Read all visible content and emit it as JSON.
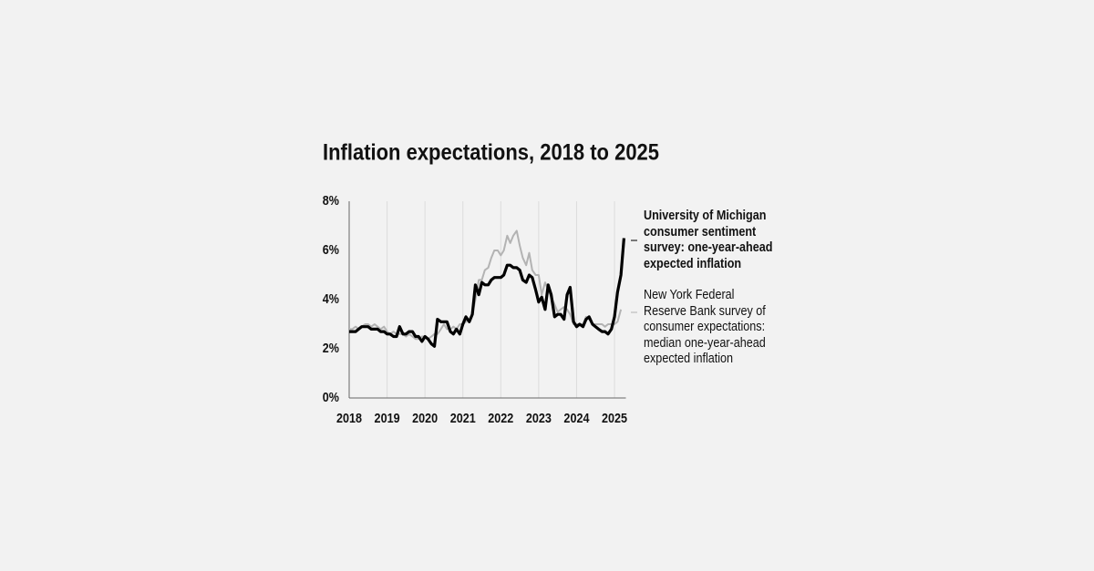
{
  "chart_data": {
    "type": "line",
    "title": "Inflation expectations, 2018 to 2025",
    "x": [
      2018,
      2018.08,
      2018.17,
      2018.25,
      2018.33,
      2018.42,
      2018.5,
      2018.58,
      2018.67,
      2018.75,
      2018.83,
      2018.92,
      2019,
      2019.08,
      2019.17,
      2019.25,
      2019.33,
      2019.42,
      2019.5,
      2019.58,
      2019.67,
      2019.75,
      2019.83,
      2019.92,
      2020,
      2020.08,
      2020.17,
      2020.25,
      2020.33,
      2020.42,
      2020.5,
      2020.58,
      2020.67,
      2020.75,
      2020.83,
      2020.92,
      2021,
      2021.08,
      2021.17,
      2021.25,
      2021.33,
      2021.42,
      2021.5,
      2021.58,
      2021.67,
      2021.75,
      2021.83,
      2021.92,
      2022,
      2022.08,
      2022.17,
      2022.25,
      2022.33,
      2022.42,
      2022.5,
      2022.58,
      2022.67,
      2022.75,
      2022.83,
      2022.92,
      2023,
      2023.08,
      2023.17,
      2023.25,
      2023.33,
      2023.42,
      2023.5,
      2023.58,
      2023.67,
      2023.75,
      2023.83,
      2023.92,
      2024,
      2024.08,
      2024.17,
      2024.25,
      2024.33,
      2024.42,
      2024.5,
      2024.58,
      2024.67,
      2024.75,
      2024.83,
      2024.92,
      2025,
      2025.08,
      2025.17,
      2025.25
    ],
    "series": [
      {
        "name": "New York Federal Reserve Bank survey of consumer expectations: median one-year-ahead expected inflation",
        "color": "#b3b3b3",
        "values": [
          2.8,
          2.8,
          2.9,
          2.8,
          2.9,
          3.0,
          3.0,
          2.9,
          3.0,
          2.9,
          2.8,
          2.9,
          2.7,
          2.6,
          2.7,
          2.6,
          2.6,
          2.6,
          2.5,
          2.6,
          2.5,
          2.4,
          2.4,
          2.5,
          2.5,
          2.4,
          2.5,
          2.6,
          2.6,
          2.8,
          3.0,
          2.8,
          2.8,
          2.9,
          2.8,
          3.0,
          3.0,
          3.1,
          3.2,
          3.4,
          4.0,
          4.8,
          4.8,
          5.2,
          5.3,
          5.7,
          6.0,
          6.0,
          5.8,
          6.0,
          6.6,
          6.3,
          6.6,
          6.8,
          6.2,
          5.7,
          5.4,
          5.9,
          5.2,
          5.0,
          5.0,
          4.2,
          4.7,
          4.4,
          4.1,
          3.8,
          3.5,
          3.6,
          3.7,
          3.6,
          3.4,
          3.0,
          3.0,
          3.0,
          3.0,
          3.3,
          3.2,
          3.0,
          3.0,
          3.0,
          3.0,
          2.9,
          3.0,
          3.0,
          3.0,
          3.1,
          3.6,
          null
        ]
      },
      {
        "name": "University of Michigan consumer sentiment survey: one-year-ahead expected inflation",
        "color": "#000000",
        "values": [
          2.7,
          2.7,
          2.7,
          2.8,
          2.9,
          2.9,
          2.9,
          2.8,
          2.8,
          2.8,
          2.7,
          2.7,
          2.6,
          2.6,
          2.5,
          2.5,
          2.9,
          2.6,
          2.6,
          2.7,
          2.7,
          2.5,
          2.5,
          2.3,
          2.5,
          2.4,
          2.2,
          2.1,
          3.2,
          3.1,
          3.1,
          3.1,
          2.7,
          2.6,
          2.8,
          2.6,
          3.0,
          3.3,
          3.1,
          3.4,
          4.6,
          4.2,
          4.7,
          4.6,
          4.6,
          4.8,
          4.9,
          4.9,
          4.9,
          5.0,
          5.4,
          5.4,
          5.3,
          5.3,
          5.2,
          4.8,
          4.7,
          5.0,
          4.9,
          4.4,
          3.9,
          4.1,
          3.6,
          4.6,
          4.2,
          3.3,
          3.4,
          3.4,
          3.2,
          4.2,
          4.5,
          3.1,
          2.9,
          3.0,
          2.9,
          3.2,
          3.3,
          3.0,
          2.9,
          2.8,
          2.7,
          2.7,
          2.6,
          2.8,
          3.3,
          4.3,
          5.0,
          6.5
        ]
      }
    ],
    "xlim": [
      2018,
      2025.3
    ],
    "xticks": [
      2018,
      2019,
      2020,
      2021,
      2022,
      2023,
      2024,
      2025
    ],
    "ylim": [
      0,
      8
    ],
    "yticks": [
      {
        "value": 0,
        "label": "0%"
      },
      {
        "value": 2,
        "label": "2%"
      },
      {
        "value": 4,
        "label": "4%"
      },
      {
        "value": 6,
        "label": "6%"
      },
      {
        "value": 8,
        "label": "8%"
      }
    ],
    "grid": "x"
  }
}
